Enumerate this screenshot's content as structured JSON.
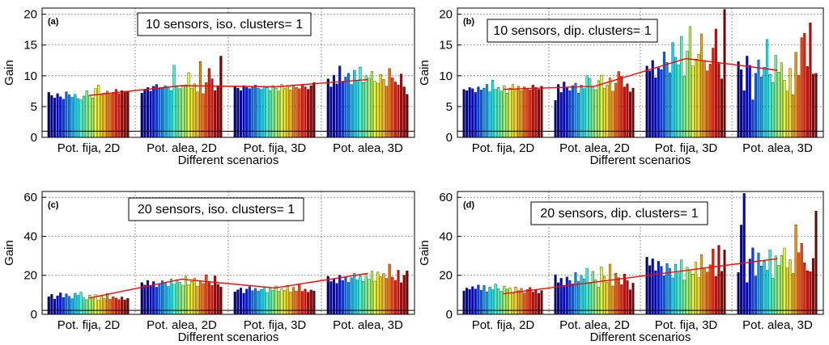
{
  "figure": {
    "xlabel": "Different scenarios",
    "ylabel": "Gain"
  },
  "chart_data": [
    {
      "type": "bar",
      "panel_label": "(a)",
      "title": "10 sensors, iso. clusters= 1",
      "xlabel": "Different scenarios",
      "ylabel": "Gain",
      "ylim": [
        0,
        21
      ],
      "yticks": [
        "0",
        "5",
        "10",
        "15",
        "20"
      ],
      "threshold": 1,
      "categories": [
        "Pot. fija, 2D",
        "Pot. alea, 2D",
        "Pot. fija, 3D",
        "Pot. alea, 3D"
      ],
      "trend": [
        6.8,
        8.4,
        8.2,
        9.4
      ],
      "groups": [
        [
          7.3,
          6.8,
          6.4,
          7.1,
          6.6,
          6.2,
          7.4,
          6.9,
          6.5,
          7.0,
          6.3,
          6.1,
          6.7,
          7.6,
          6.8,
          6.4,
          7.9,
          8.5,
          6.9,
          7.2,
          7.5,
          7.0,
          7.3,
          7.8,
          7.1,
          7.6,
          7.4,
          7.5
        ],
        [
          7.2,
          7.8,
          8.1,
          7.5,
          8.3,
          8.6,
          7.9,
          8.0,
          8.4,
          8.2,
          7.6,
          11.7,
          8.4,
          7.9,
          8.3,
          8.5,
          10.5,
          8.0,
          8.7,
          7.4,
          12.3,
          7.1,
          8.9,
          11.2,
          9.5,
          7.6,
          8.4,
          13.2
        ],
        [
          8.3,
          8.0,
          7.6,
          8.4,
          8.1,
          7.9,
          8.2,
          8.5,
          8.0,
          7.8,
          8.3,
          8.1,
          7.6,
          8.4,
          8.0,
          7.5,
          8.6,
          7.9,
          8.3,
          7.7,
          8.5,
          8.1,
          7.9,
          8.6,
          8.2,
          7.8,
          8.4,
          8.9
        ],
        [
          9.5,
          8.2,
          10.1,
          8.7,
          11.6,
          9.0,
          9.8,
          10.4,
          8.6,
          10.9,
          9.3,
          11.4,
          8.9,
          10.0,
          9.6,
          10.7,
          9.1,
          8.8,
          10.2,
          9.4,
          8.3,
          11.2,
          9.7,
          9.0,
          8.5,
          10.3,
          8.2,
          7.0
        ]
      ]
    },
    {
      "type": "bar",
      "panel_label": "(b)",
      "title": "10 sensors, dip. clusters= 1",
      "xlabel": "Different scenarios",
      "ylabel": "Gain",
      "ylim": [
        0,
        21
      ],
      "yticks": [
        "0",
        "5",
        "10",
        "15",
        "20"
      ],
      "threshold": 1,
      "categories": [
        "Pot. fija, 2D",
        "Pot. alea, 2D",
        "Pot. fija, 3D",
        "Pot. alea, 3D"
      ],
      "trend": [
        7.8,
        8.3,
        12.8,
        10.9
      ],
      "groups": [
        [
          7.8,
          7.6,
          8.1,
          7.9,
          7.3,
          8.2,
          7.7,
          8.0,
          8.6,
          7.4,
          9.3,
          7.8,
          8.1,
          7.5,
          8.4,
          7.2,
          8.0,
          8.6,
          7.9,
          8.3,
          7.6,
          8.2,
          8.0,
          7.7,
          8.5,
          8.1,
          7.8,
          8.3
        ],
        [
          6.0,
          8.6,
          7.3,
          9.0,
          8.1,
          7.6,
          8.4,
          8.8,
          7.2,
          8.5,
          7.9,
          10.0,
          9.6,
          8.3,
          7.7,
          9.2,
          10.1,
          8.0,
          8.5,
          9.7,
          7.5,
          8.8,
          10.7,
          9.9,
          8.2,
          8.7,
          7.4,
          8.0
        ],
        [
          11.6,
          10.8,
          12.5,
          9.7,
          11.3,
          11.0,
          13.9,
          12.2,
          10.5,
          15.4,
          13.0,
          11.8,
          16.4,
          9.9,
          14.0,
          18.0,
          11.6,
          12.7,
          13.5,
          16.8,
          12.4,
          10.8,
          11.9,
          14.5,
          17.6,
          12.1,
          9.5,
          20.8
        ],
        [
          12.3,
          11.0,
          7.6,
          13.2,
          11.7,
          6.1,
          10.4,
          12.6,
          9.8,
          11.4,
          15.9,
          10.2,
          8.9,
          13.3,
          10.6,
          12.1,
          9.3,
          7.5,
          11.2,
          6.9,
          13.8,
          10.1,
          16.2,
          16.9,
          11.5,
          18.6,
          10.3,
          10.4
        ]
      ]
    },
    {
      "type": "bar",
      "panel_label": "(c)",
      "title": "20 sensors, iso. clusters= 1",
      "xlabel": "Different scenarios",
      "ylabel": "Gain",
      "ylim": [
        0,
        63
      ],
      "yticks": [
        "0",
        "20",
        "40",
        "60"
      ],
      "threshold": 2,
      "categories": [
        "Pot. fija, 2D",
        "Pot. alea, 2D",
        "Pot. fija, 3D",
        "Pot. alea, 3D"
      ],
      "trend": [
        8.3,
        18.0,
        13.5,
        21.0
      ],
      "groups": [
        [
          9.0,
          10.2,
          7.8,
          9.5,
          11.0,
          8.6,
          10.5,
          9.2,
          8.0,
          10.8,
          9.7,
          11.3,
          8.4,
          7.5,
          9.9,
          8.8,
          10.1,
          7.2,
          9.4,
          8.1,
          10.6,
          7.7,
          9.0,
          8.3,
          7.6,
          8.9,
          7.4,
          8.2
        ],
        [
          16.3,
          15.0,
          17.4,
          14.6,
          16.8,
          13.9,
          15.7,
          17.2,
          16.0,
          14.3,
          18.1,
          15.5,
          17.8,
          16.5,
          14.9,
          19.5,
          15.2,
          16.9,
          18.6,
          14.5,
          17.1,
          15.8,
          20.3,
          16.2,
          14.8,
          19.7,
          15.4,
          14.0
        ],
        [
          11.5,
          12.6,
          13.5,
          10.8,
          12.9,
          14.2,
          12.1,
          13.3,
          11.9,
          12.7,
          14.0,
          11.2,
          13.6,
          12.4,
          14.5,
          11.7,
          13.1,
          12.2,
          14.8,
          11.4,
          13.8,
          12.0,
          15.1,
          11.8,
          12.9,
          11.3,
          12.5,
          12.0
        ],
        [
          19.5,
          16.8,
          18.2,
          15.9,
          20.1,
          17.3,
          19.0,
          16.4,
          18.7,
          21.0,
          17.6,
          19.8,
          16.9,
          20.5,
          18.0,
          22.1,
          17.0,
          21.6,
          19.3,
          20.8,
          18.4,
          25.7,
          19.1,
          17.4,
          22.6,
          16.2,
          20.0,
          22.3
        ]
      ]
    },
    {
      "type": "bar",
      "panel_label": "(d)",
      "title": "20 sensors, dip. clusters= 1",
      "xlabel": "Different scenarios",
      "ylabel": "Gain",
      "ylim": [
        0,
        63
      ],
      "yticks": [
        "0",
        "20",
        "40",
        "60"
      ],
      "threshold": 2,
      "categories": [
        "Pot. fija, 2D",
        "Pot. alea, 2D",
        "Pot. fija, 3D",
        "Pot. alea, 3D"
      ],
      "trend": [
        10.5,
        16.5,
        22.5,
        28.5
      ],
      "groups": [
        [
          12.0,
          13.5,
          12.8,
          14.2,
          13.0,
          15.0,
          12.3,
          14.8,
          11.5,
          13.9,
          12.6,
          15.5,
          13.2,
          11.8,
          14.4,
          12.9,
          13.6,
          11.2,
          14.0,
          12.1,
          13.3,
          10.9,
          12.7,
          13.8,
          11.4,
          12.5,
          10.8,
          12.2
        ],
        [
          20.3,
          16.2,
          18.5,
          14.9,
          19.2,
          17.4,
          15.6,
          21.4,
          16.8,
          19.9,
          18.1,
          23.4,
          15.9,
          22.0,
          17.7,
          13.8,
          24.3,
          19.5,
          16.4,
          25.7,
          14.5,
          21.1,
          18.8,
          15.2,
          20.6,
          17.3,
          12.6,
          16.0
        ],
        [
          29.3,
          25.0,
          28.5,
          22.4,
          27.2,
          24.6,
          19.8,
          26.1,
          23.5,
          18.7,
          25.6,
          21.3,
          27.9,
          17.5,
          24.1,
          22.8,
          20.6,
          26.7,
          18.9,
          30.6,
          23.2,
          21.7,
          25.4,
          33.5,
          19.4,
          35.4,
          22.1,
          33.0
        ],
        [
          21.5,
          45.8,
          62.0,
          16.3,
          28.4,
          34.1,
          19.6,
          31.5,
          24.8,
          27.3,
          22.6,
          33.0,
          18.5,
          29.9,
          25.1,
          30.2,
          34.0,
          23.7,
          28.0,
          20.9,
          45.9,
          31.6,
          36.4,
          26.4,
          22.4,
          21.9,
          28.7,
          53.0
        ]
      ]
    }
  ]
}
